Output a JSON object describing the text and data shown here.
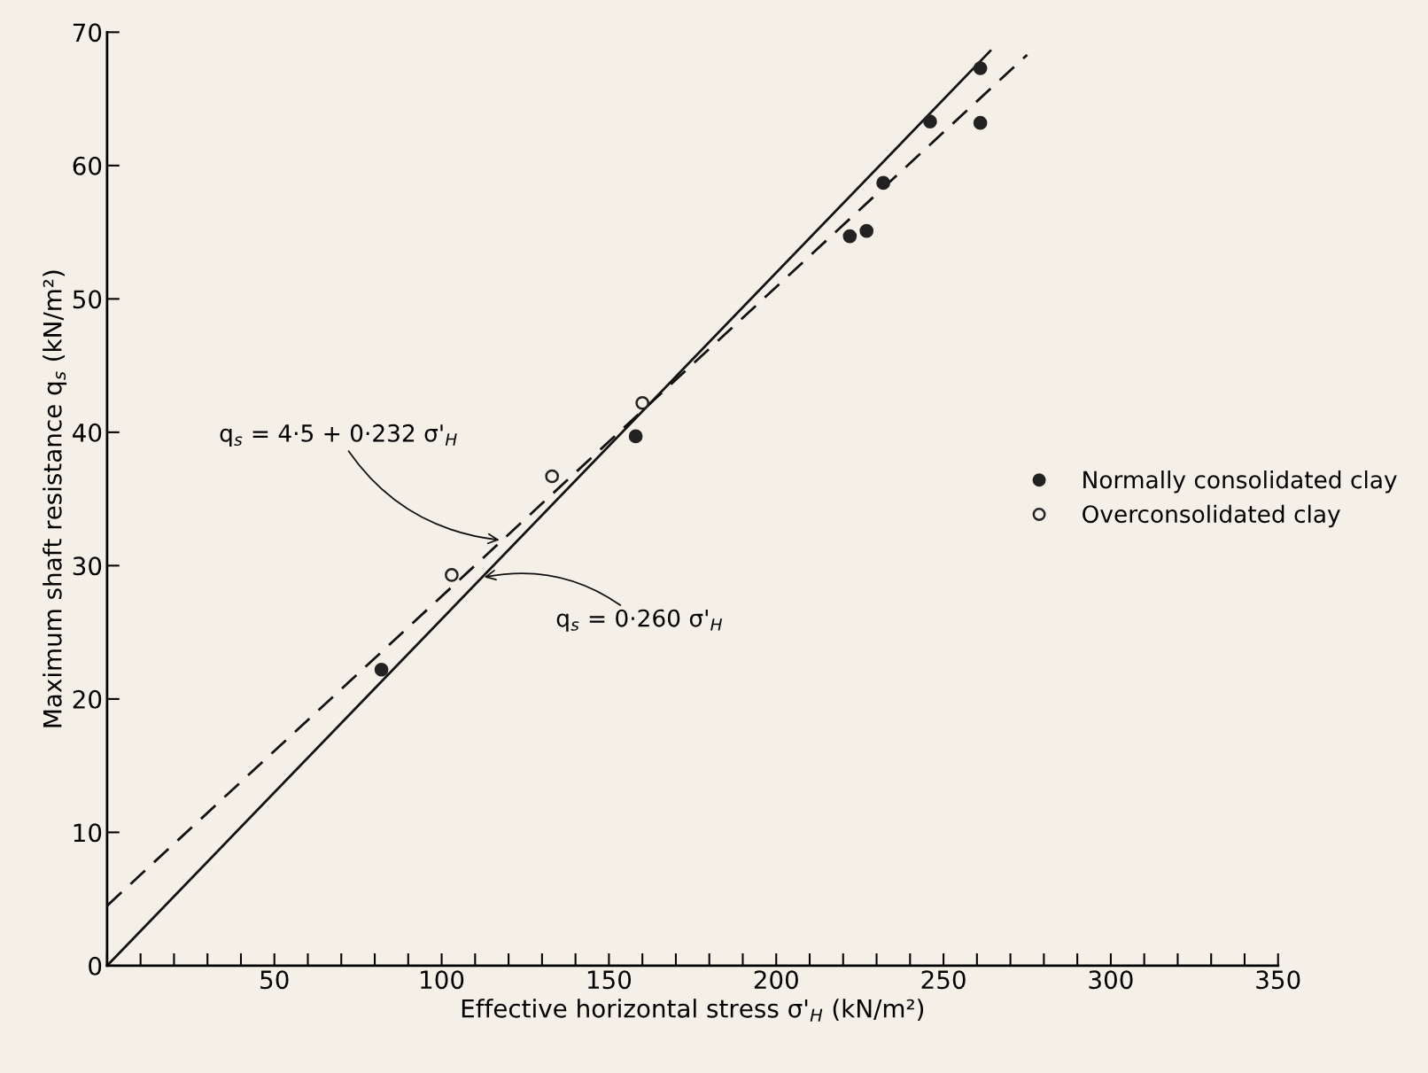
{
  "chart_data": {
    "type": "scatter",
    "xlabel": "Effective horizontal stress σ'$_{H}$ (kN/m²)",
    "ylabel": "Maximum shaft resistance q$_{s}$ (kN/m²)",
    "xlim": [
      0,
      350
    ],
    "ylim": [
      0,
      70
    ],
    "xticks": [
      {
        "value": 0,
        "label": null
      },
      {
        "value": 10,
        "label": null
      },
      {
        "value": 20,
        "label": null
      },
      {
        "value": 30,
        "label": null
      },
      {
        "value": 40,
        "label": null
      },
      50,
      {
        "value": 60,
        "label": null
      },
      {
        "value": 70,
        "label": null
      },
      {
        "value": 80,
        "label": null
      },
      {
        "value": 90,
        "label": null
      },
      100,
      {
        "value": 110,
        "label": null
      },
      {
        "value": 120,
        "label": null
      },
      {
        "value": 130,
        "label": null
      },
      {
        "value": 140,
        "label": null
      },
      150,
      {
        "value": 160,
        "label": null
      },
      {
        "value": 170,
        "label": null
      },
      {
        "value": 180,
        "label": null
      },
      {
        "value": 190,
        "label": null
      },
      200,
      {
        "value": 210,
        "label": null
      },
      {
        "value": 220,
        "label": null
      },
      {
        "value": 230,
        "label": null
      },
      {
        "value": 240,
        "label": null
      },
      250,
      {
        "value": 260,
        "label": null
      },
      {
        "value": 270,
        "label": null
      },
      {
        "value": 280,
        "label": null
      },
      {
        "value": 290,
        "label": null
      },
      300,
      {
        "value": 310,
        "label": null
      },
      {
        "value": 320,
        "label": null
      },
      {
        "value": 330,
        "label": null
      },
      {
        "value": 340,
        "label": null
      },
      350
    ],
    "yticks": [
      0,
      10,
      20,
      30,
      40,
      50,
      60,
      70
    ],
    "grid": false,
    "legend": "right",
    "series": [
      {
        "name": "Normally consolidated clay",
        "color": "#222222",
        "marker": "circle",
        "x": [
          82,
          158,
          222,
          227,
          232,
          246,
          261,
          261
        ],
        "values": [
          22.2,
          39.7,
          54.7,
          55.1,
          58.7,
          63.3,
          67.3,
          63.2
        ]
      },
      {
        "name": "Overconsolidated clay",
        "color": "#f4f0e8",
        "marker": "circle",
        "x": [
          103,
          133,
          160
        ],
        "values": [
          29.3,
          36.7,
          42.2
        ]
      },
      {
        "type": "line",
        "color": "#111111",
        "marker": "none",
        "line_style": "solid",
        "x": [
          0,
          264
        ],
        "values": [
          0,
          68.6
        ]
      },
      {
        "type": "line",
        "color": "#111111",
        "marker": "none",
        "line_style": "dashed",
        "x": [
          0,
          275
        ],
        "values": [
          4.5,
          68.3
        ]
      }
    ],
    "annotations": [
      {
        "text": "q$_{s}$ = 4·5 + 0·232 σ'$_{H}$",
        "x": 118,
        "y": 31.9
      },
      {
        "text": "q$_{s}$ = 0·260 σ'$_{H}$",
        "x": 112,
        "y": 29.1
      }
    ]
  }
}
